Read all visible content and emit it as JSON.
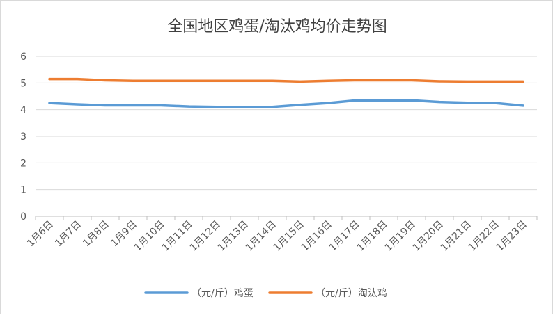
{
  "chart_data": {
    "type": "line",
    "title": "全国地区鸡蛋/淘汰鸡均价走势图",
    "xlabel": "",
    "ylabel": "",
    "ylim": [
      0,
      6
    ],
    "yticks": [
      0,
      1,
      2,
      3,
      4,
      5,
      6
    ],
    "grid": true,
    "legend": "bottom",
    "x": [
      "1月6日",
      "1月7日",
      "1月8日",
      "1月9日",
      "1月10日",
      "1月11日",
      "1月12日",
      "1月13日",
      "1月14日",
      "1月15日",
      "1月16日",
      "1月17日",
      "1月18日",
      "1月19日",
      "1月20日",
      "1月21日",
      "1月22日",
      "1月23日"
    ],
    "series": [
      {
        "name": "（元/斤）鸡蛋",
        "color": "#5b9bd5",
        "values": [
          4.25,
          4.2,
          4.16,
          4.16,
          4.16,
          4.12,
          4.1,
          4.1,
          4.1,
          4.18,
          4.25,
          4.35,
          4.35,
          4.35,
          4.29,
          4.26,
          4.25,
          4.15
        ]
      },
      {
        "name": "（元/斤）淘汰鸡",
        "color": "#ed7d31",
        "values": [
          5.15,
          5.15,
          5.1,
          5.08,
          5.08,
          5.08,
          5.08,
          5.08,
          5.08,
          5.05,
          5.08,
          5.1,
          5.1,
          5.1,
          5.06,
          5.05,
          5.05,
          5.05
        ]
      }
    ]
  }
}
